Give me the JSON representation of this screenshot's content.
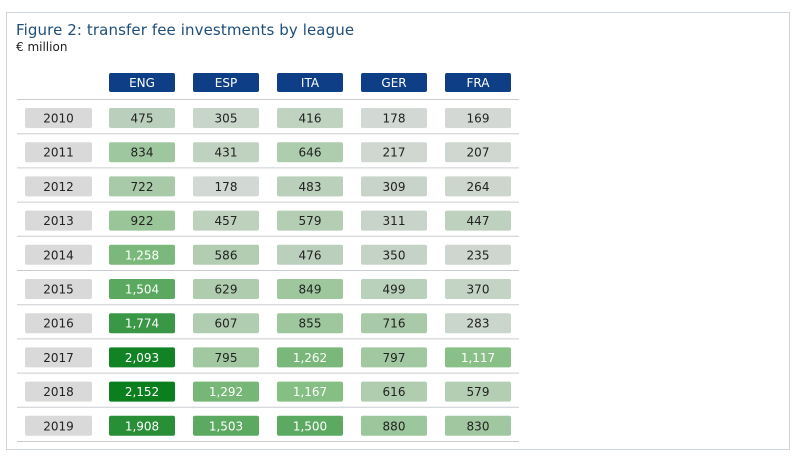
{
  "title": "Figure 2: transfer fee investments by league",
  "subtitle": "€ million",
  "chart_data": {
    "type": "heatmap",
    "title": "Figure 2: transfer fee investments by league",
    "subtitle": "€ million",
    "columns": [
      "ENG",
      "ESP",
      "ITA",
      "GER",
      "FRA"
    ],
    "rows": [
      "2010",
      "2011",
      "2012",
      "2013",
      "2014",
      "2015",
      "2016",
      "2017",
      "2018",
      "2019"
    ],
    "values": [
      [
        475,
        305,
        416,
        178,
        169
      ],
      [
        834,
        431,
        646,
        217,
        207
      ],
      [
        722,
        178,
        483,
        309,
        264
      ],
      [
        922,
        457,
        579,
        311,
        447
      ],
      [
        1258,
        586,
        476,
        350,
        235
      ],
      [
        1504,
        629,
        849,
        499,
        370
      ],
      [
        1774,
        607,
        855,
        716,
        283
      ],
      [
        2093,
        795,
        1262,
        797,
        1117
      ],
      [
        2152,
        1292,
        1167,
        616,
        579
      ],
      [
        1908,
        1503,
        1500,
        880,
        830
      ]
    ],
    "labels": [
      [
        "475",
        "305",
        "416",
        "178",
        "169"
      ],
      [
        "834",
        "431",
        "646",
        "217",
        "207"
      ],
      [
        "722",
        "178",
        "483",
        "309",
        "264"
      ],
      [
        "922",
        "457",
        "579",
        "311",
        "447"
      ],
      [
        "1,258",
        "586",
        "476",
        "350",
        "235"
      ],
      [
        "1,504",
        "629",
        "849",
        "499",
        "370"
      ],
      [
        "1,774",
        "607",
        "855",
        "716",
        "283"
      ],
      [
        "2,093",
        "795",
        "1,262",
        "797",
        "1,117"
      ],
      [
        "2,152",
        "1,292",
        "1,167",
        "616",
        "579"
      ],
      [
        "1,908",
        "1,503",
        "1,500",
        "880",
        "830"
      ]
    ],
    "color_scale": {
      "low": "#d3d8d4",
      "mid": "#86bf85",
      "high": "#0b7f1e"
    },
    "header_color": "#0e3f86",
    "row_label_color": "#d9d9d9",
    "grid": true
  }
}
